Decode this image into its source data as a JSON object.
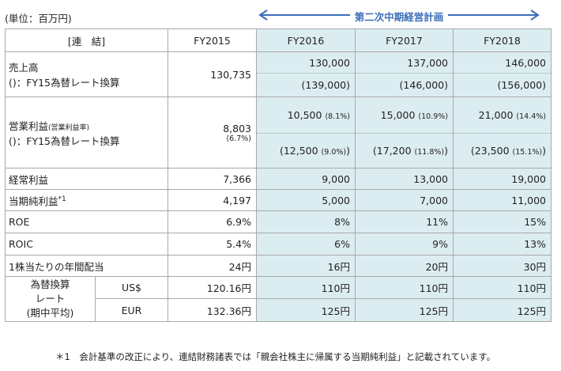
{
  "unit": "(単位：百万円)",
  "plan_label": "第二次中期経営計画",
  "header": {
    "label": "[連　結]",
    "fy2015": "FY2015",
    "fy2016": "FY2016",
    "fy2017": "FY2017",
    "fy2018": "FY2018"
  },
  "sales": {
    "label1": "売上高",
    "label2": "()：FY15為替レート換算",
    "fy2015": "130,735",
    "fy2016": "130,000",
    "fy2016_fx": "(139,000)",
    "fy2017": "137,000",
    "fy2017_fx": "(146,000)",
    "fy2018": "146,000",
    "fy2018_fx": "(156,000)"
  },
  "op": {
    "label1": "営業利益",
    "label1_small": "(営業利益率)",
    "label2": "()：FY15為替レート換算",
    "fy2015": "8,803",
    "fy2015_pct": "(6.7%)",
    "fy2016": "10,500",
    "fy2016_pct": "(8.1%)",
    "fy2016_fx": "(12,500",
    "fy2016_fx_pct": "(9.0%)",
    "fy2016_fx_close": ")",
    "fy2017": "15,000",
    "fy2017_pct": "(10.9%)",
    "fy2017_fx": "(17,200",
    "fy2017_fx_pct": "(11.8%)",
    "fy2017_fx_close": ")",
    "fy2018": "21,000",
    "fy2018_pct": "(14.4%)",
    "fy2018_fx": "(23,500",
    "fy2018_fx_pct": "(15.1%)",
    "fy2018_fx_close": ")"
  },
  "rows": [
    {
      "label": "経常利益",
      "sup": "",
      "fy2015": "7,366",
      "fy2016": "9,000",
      "fy2017": "13,000",
      "fy2018": "19,000"
    },
    {
      "label": "当期純利益",
      "sup": "*1",
      "fy2015": "4,197",
      "fy2016": "5,000",
      "fy2017": "7,000",
      "fy2018": "11,000"
    },
    {
      "label": "ROE",
      "sup": "",
      "fy2015": "6.9%",
      "fy2016": "8%",
      "fy2017": "11%",
      "fy2018": "15%"
    },
    {
      "label": "ROIC",
      "sup": "",
      "fy2015": "5.4%",
      "fy2016": "6%",
      "fy2017": "9%",
      "fy2018": "13%"
    },
    {
      "label": "1株当たりの年間配当",
      "sup": "",
      "fy2015": "24円",
      "fy2016": "16円",
      "fy2017": "20円",
      "fy2018": "30円"
    }
  ],
  "fx": {
    "label_line1": "為替換算",
    "label_line2": "レート",
    "label_line3": "(期中平均)",
    "usd": {
      "cur": "US$",
      "fy2015": "120.16円",
      "fy2016": "110円",
      "fy2017": "110円",
      "fy2018": "110円"
    },
    "eur": {
      "cur": "EUR",
      "fy2015": "132.36円",
      "fy2016": "125円",
      "fy2017": "125円",
      "fy2018": "125円"
    }
  },
  "footnote": "＊1　会計基準の改正により、連結財務諸表では「親会社株主に帰属する当期純利益」と記載されています。"
}
